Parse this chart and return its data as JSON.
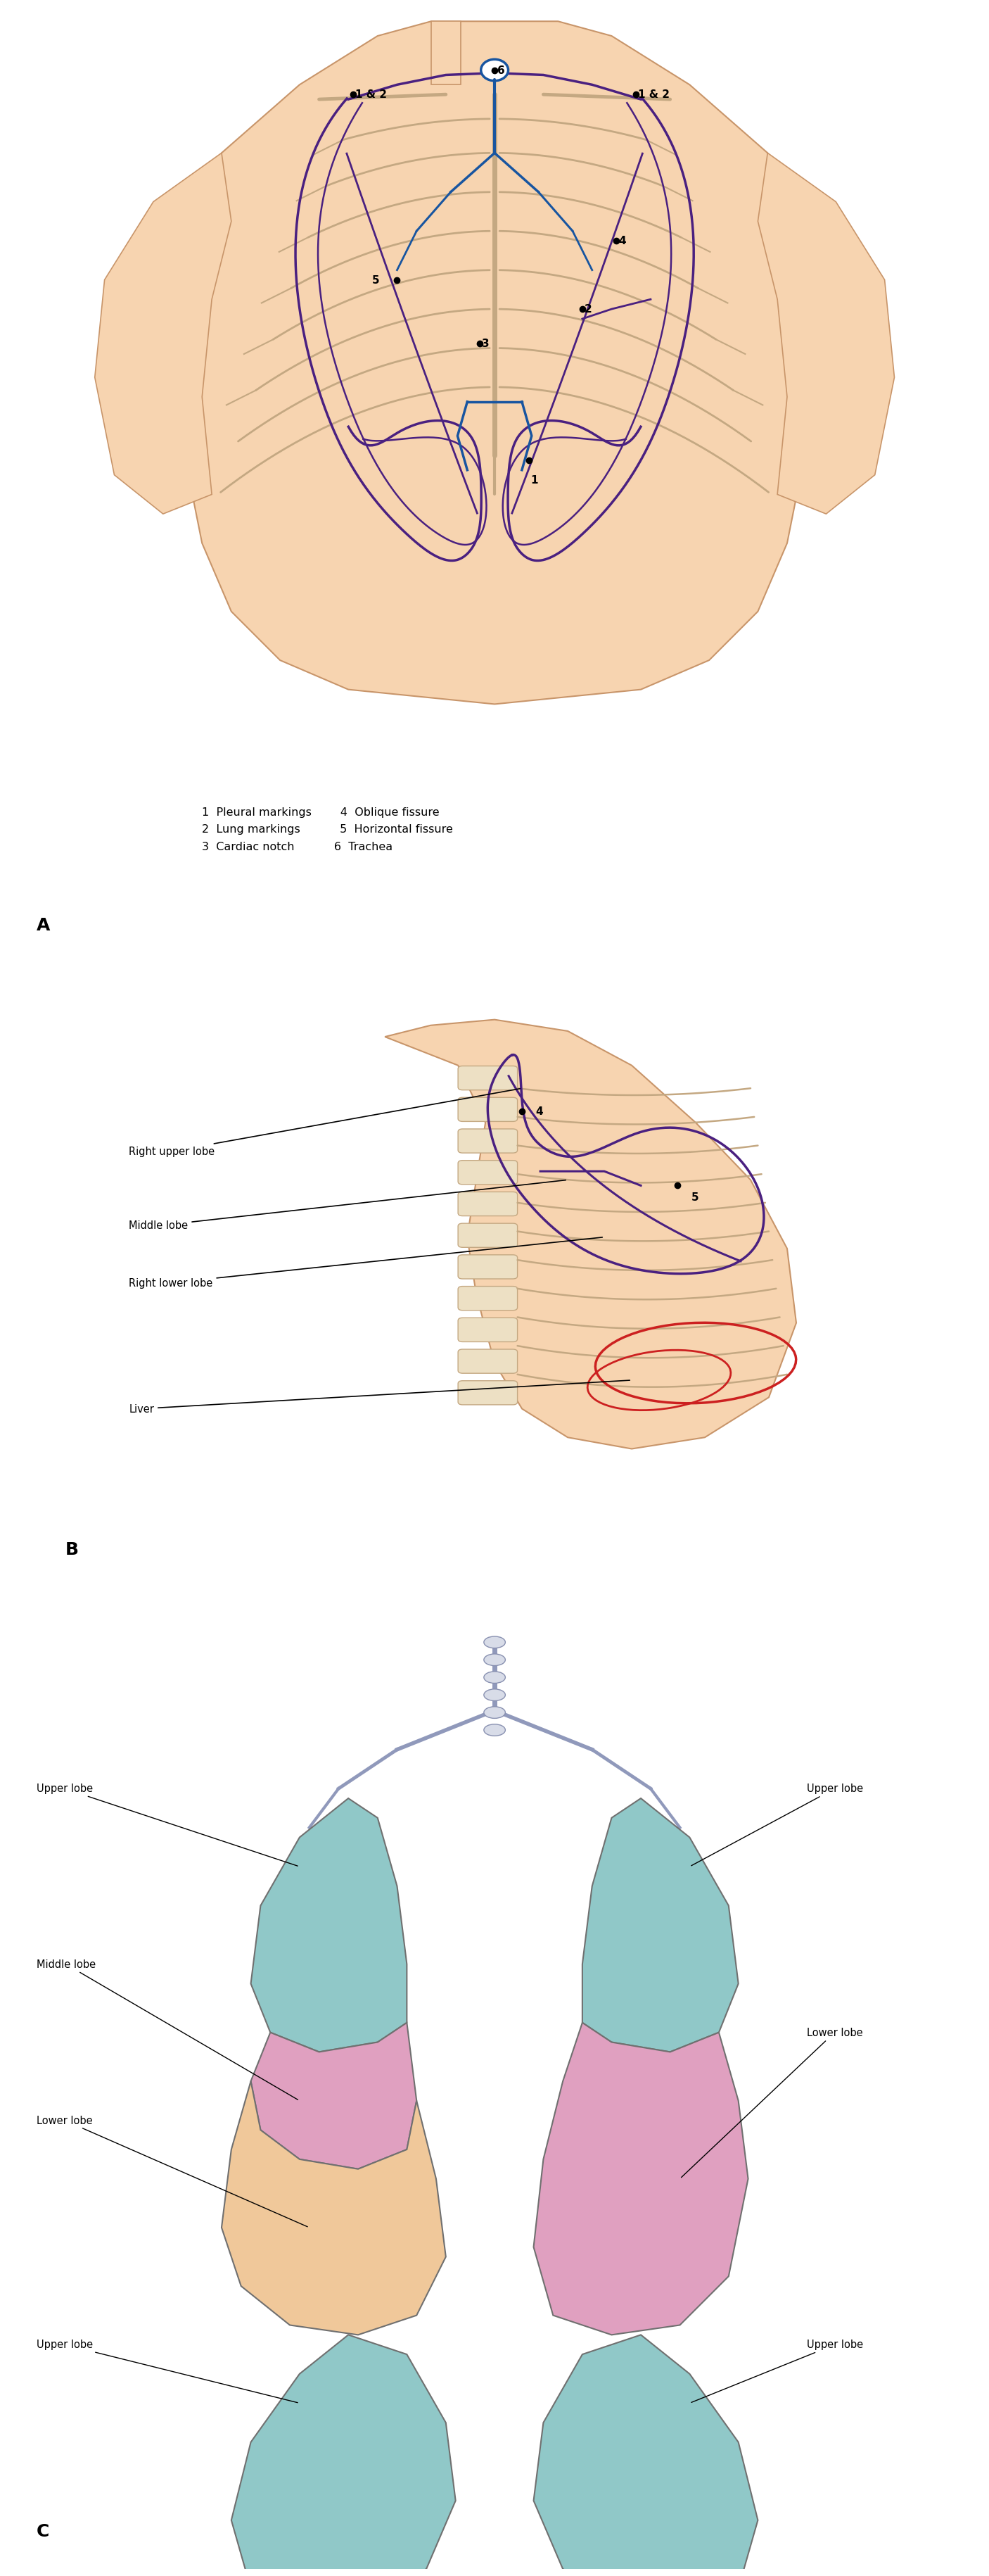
{
  "colors": {
    "background": "#ffffff",
    "skin": "#f7d4b0",
    "skin_edge": "#c8956a",
    "bone": "#ede0c4",
    "bone_edge": "#c4a882",
    "pleura": "#4a2080",
    "trachea": "#1855a0",
    "liver": "#cc2020",
    "lung_teal": "#90c8c8",
    "lung_pink": "#e0a0c0",
    "lung_peach": "#f0c89a",
    "lobe_edge": "#707070",
    "text": "#000000",
    "dot": "#000000"
  },
  "legend_A": [
    "1  Pleural markings",
    "2  Lung markings",
    "3  Cardiac notch",
    "4  Oblique fissure",
    "5  Horizontal fissure",
    "6  Trachea"
  ]
}
